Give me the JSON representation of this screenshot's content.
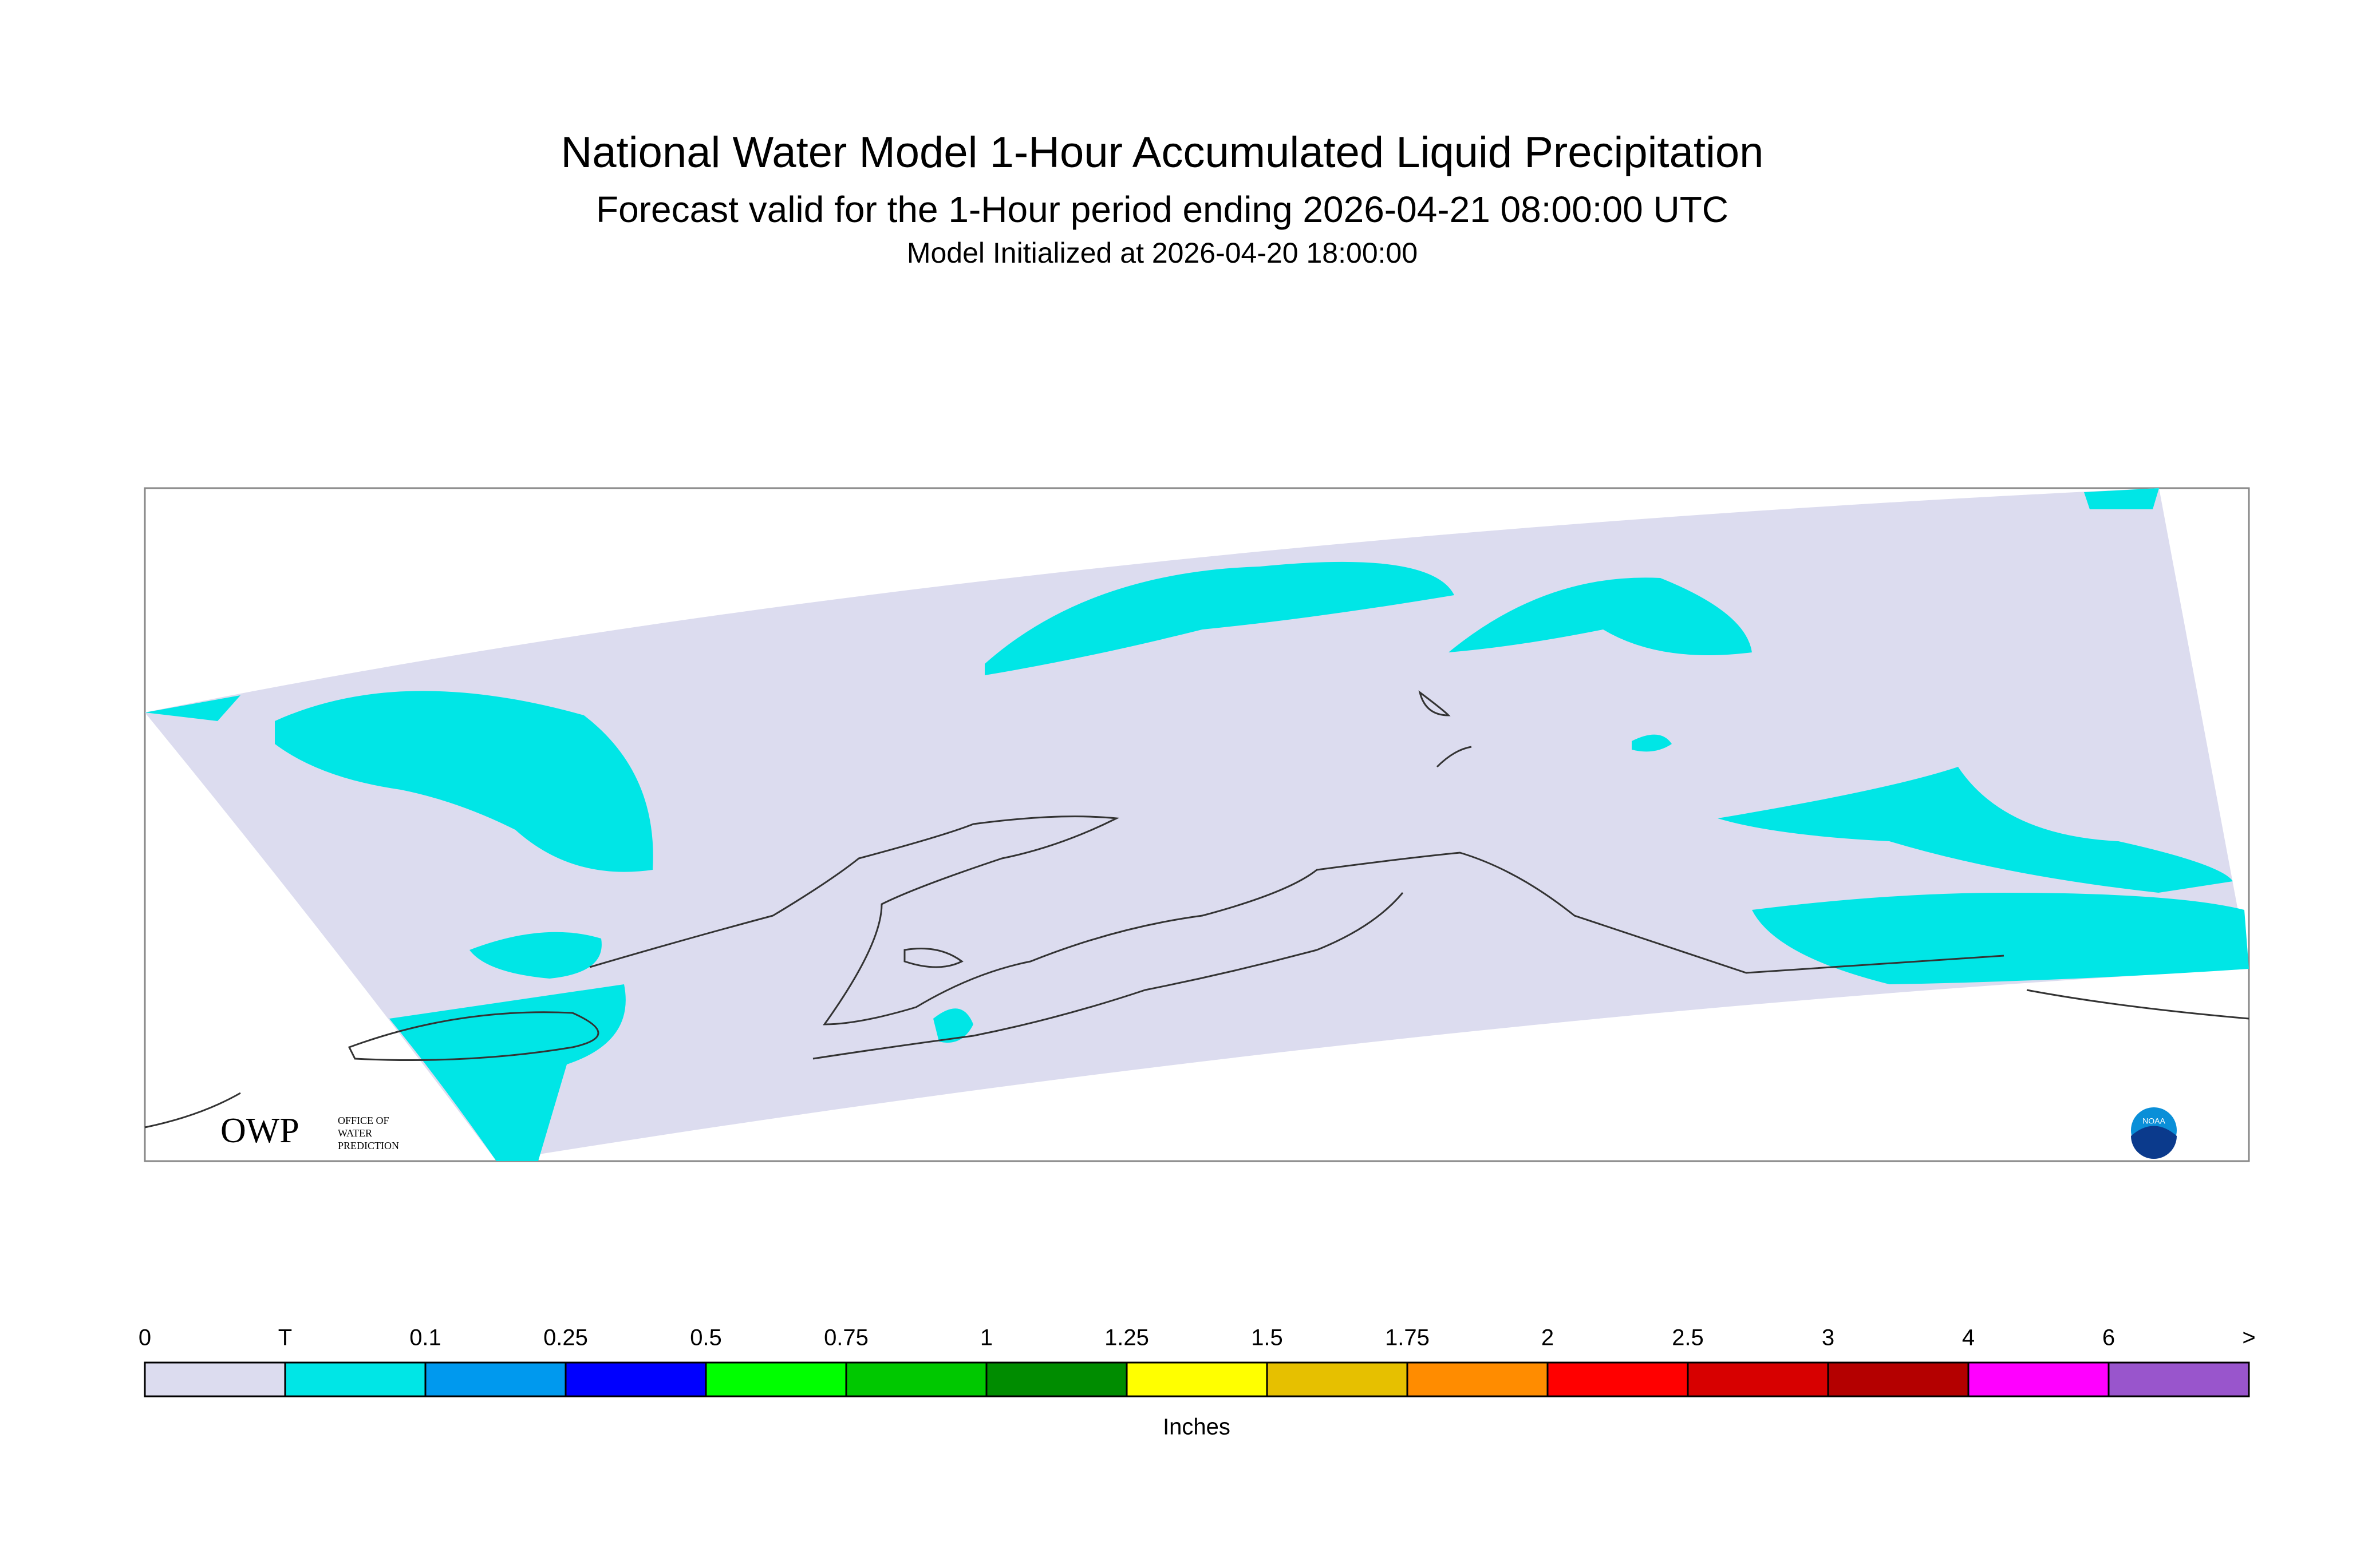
{
  "header": {
    "title": "National Water Model 1-Hour Accumulated Liquid Precipitation",
    "subtitle": "Forecast valid for the 1-Hour period ending 2026-04-21 08:00:00 UTC",
    "initialized": "Model Initialized at 2026-04-20 18:00:00"
  },
  "map": {
    "logo_left": {
      "mark": "OWP",
      "lines": [
        "OFFICE OF",
        "WATER",
        "PREDICTION"
      ]
    },
    "logo_right": "NOAA"
  },
  "colorbar": {
    "labels": [
      "0",
      "T",
      "0.1",
      "0.25",
      "0.5",
      "0.75",
      "1",
      "1.25",
      "1.5",
      "1.75",
      "2",
      "2.5",
      "3",
      "4",
      "6",
      ">"
    ],
    "colors": [
      "#dcdcef",
      "#00e6e6",
      "#0099ee",
      "#0000ff",
      "#00ff00",
      "#00c800",
      "#008c00",
      "#ffff00",
      "#e6c000",
      "#ff8c00",
      "#ff0000",
      "#d70000",
      "#b40000",
      "#ff00ff",
      "#9955cc"
    ],
    "unit": "Inches"
  }
}
